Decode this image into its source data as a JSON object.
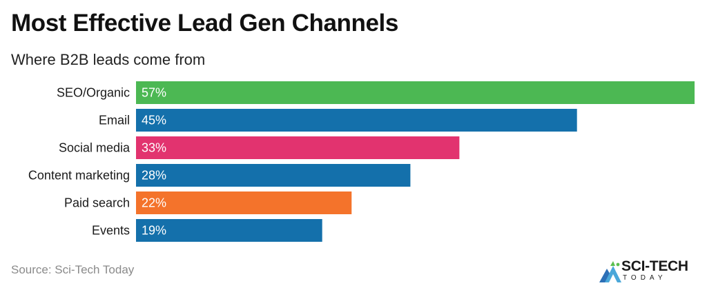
{
  "title": "Most Effective Lead Gen Channels",
  "subtitle": "Where B2B leads come from",
  "source": "Source: Sci-Tech Today",
  "logo": {
    "word": "SCI-TECH",
    "sub": "TODAY",
    "icon": "sci-tech-mountain-logo"
  },
  "chart_data": {
    "type": "bar",
    "orientation": "horizontal",
    "categories": [
      "SEO/Organic",
      "Email",
      "Social media",
      "Content marketing",
      "Paid search",
      "Events"
    ],
    "values": [
      57,
      45,
      33,
      28,
      22,
      19
    ],
    "value_labels": [
      "57%",
      "45%",
      "33%",
      "28%",
      "22%",
      "19%"
    ],
    "colors": [
      "#4cb853",
      "#1470ab",
      "#e2336f",
      "#1470ab",
      "#f4732b",
      "#1470ab"
    ],
    "xlim": [
      0,
      57
    ],
    "unit": "%",
    "grid": false,
    "legend": "none"
  }
}
